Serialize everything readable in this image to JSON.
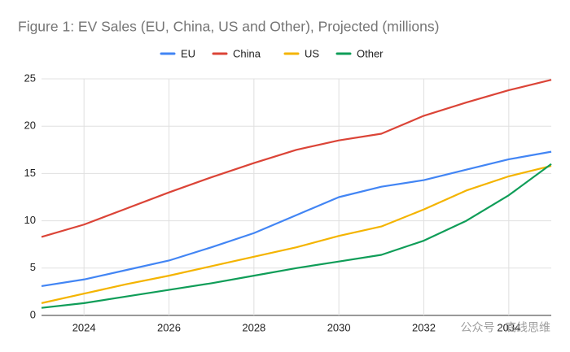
{
  "chart_data": {
    "type": "line",
    "title": "Figure 1: EV Sales (EU, China, US and Other), Projected (millions)",
    "x": [
      2023,
      2024,
      2025,
      2026,
      2027,
      2028,
      2029,
      2030,
      2031,
      2032,
      2033,
      2034,
      2035
    ],
    "series": [
      {
        "name": "EU",
        "color": "#4285f4",
        "values": [
          3.1,
          3.8,
          4.8,
          5.8,
          7.2,
          8.7,
          10.6,
          12.5,
          13.6,
          14.3,
          15.4,
          16.5,
          17.3
        ]
      },
      {
        "name": "China",
        "color": "#db4437",
        "values": [
          8.3,
          9.6,
          11.3,
          13.0,
          14.6,
          16.1,
          17.5,
          18.5,
          19.2,
          21.1,
          22.5,
          23.8,
          24.9
        ]
      },
      {
        "name": "US",
        "color": "#f4b400",
        "values": [
          1.3,
          2.3,
          3.3,
          4.2,
          5.2,
          6.2,
          7.2,
          8.4,
          9.4,
          11.2,
          13.2,
          14.7,
          15.8
        ]
      },
      {
        "name": "Other",
        "color": "#0f9d58",
        "values": [
          0.8,
          1.3,
          2.0,
          2.7,
          3.4,
          4.2,
          5.0,
          5.7,
          6.4,
          7.9,
          10.0,
          12.7,
          16.0
        ]
      }
    ],
    "xlim": [
      2023,
      2035
    ],
    "xticks": [
      2024,
      2026,
      2028,
      2030,
      2032,
      2034
    ],
    "ylim": [
      0,
      25
    ],
    "yticks": [
      0,
      5,
      10,
      15,
      20,
      25
    ],
    "grid": true,
    "legend": "top",
    "watermark": "公众号 · 底线思维"
  }
}
